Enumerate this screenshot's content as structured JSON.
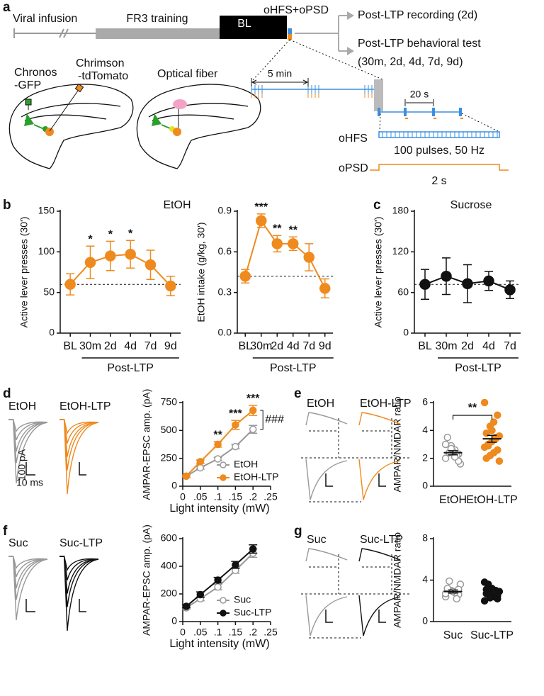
{
  "panels": [
    "a",
    "b",
    "c",
    "d",
    "e",
    "f",
    "g"
  ],
  "diagram": {
    "timeline": [
      "Viral infusion",
      "FR3 training",
      "BL",
      "oHFS+oPSD"
    ],
    "outcomes": [
      "Post-LTP recording (2d)",
      "Post-LTP behavioral test",
      "(30m, 2d, 4d, 7d, 9d)"
    ],
    "labels": [
      "Chronos",
      "-GFP",
      "Chrimson",
      "-tdTomato",
      "Optical fiber"
    ],
    "protocol": [
      "5 min",
      "20 s",
      "oHFS",
      "100 pulses, 50 Hz",
      "oPSD",
      "2 s"
    ]
  },
  "chart_data": [
    {
      "type": "line",
      "title": "EtOH",
      "categories": [
        "BL",
        "30m",
        "2d",
        "4d",
        "7d",
        "9d"
      ],
      "group_label": "Post-LTP",
      "ylabel": "Active lever presses (30')",
      "ylim": [
        0,
        150
      ],
      "yticks": [
        0,
        50,
        100,
        150
      ],
      "baseline": 60,
      "series": [
        {
          "color": "#ee8a1e",
          "filled": true,
          "values": [
            60,
            87,
            95,
            97,
            84,
            58
          ],
          "errors": [
            13,
            20,
            18,
            17,
            18,
            12
          ]
        }
      ],
      "stars": [
        null,
        "*",
        "*",
        "*",
        null,
        null
      ]
    },
    {
      "type": "line",
      "categories": [
        "BL",
        "30m",
        "2d",
        "4d",
        "7d",
        "9d"
      ],
      "group_label": "Post-LTP",
      "ylabel": "EtOH intake (g/kg, 30')",
      "ylim": [
        0,
        0.9
      ],
      "yticks": [
        {
          "value": 0,
          "label": "0.0"
        },
        0.3,
        0.6,
        0.9
      ],
      "baseline": 0.42,
      "series": [
        {
          "color": "#ee8a1e",
          "filled": true,
          "values": [
            0.42,
            0.83,
            0.66,
            0.66,
            0.56,
            0.33
          ],
          "errors": [
            0.05,
            0.05,
            0.06,
            0.05,
            0.1,
            0.07
          ]
        }
      ],
      "stars": [
        null,
        "***",
        "**",
        "**",
        null,
        null
      ]
    },
    {
      "type": "line",
      "title": "Sucrose",
      "categories": [
        "BL",
        "30m",
        "2d",
        "4d",
        "7d"
      ],
      "group_label": "Post-LTP",
      "ylabel": "Active lever presses (30')",
      "ylim": [
        0,
        180
      ],
      "yticks": [
        0,
        60,
        120,
        180
      ],
      "baseline": 72,
      "series": [
        {
          "color": "#111111",
          "filled": true,
          "values": [
            72,
            84,
            73,
            77,
            64
          ],
          "errors": [
            22,
            27,
            28,
            14,
            13
          ]
        }
      ]
    },
    {
      "type": "line",
      "x": [
        0.01,
        0.05,
        0.1,
        0.15,
        0.2
      ],
      "xlim": [
        0,
        0.25
      ],
      "xticks": [
        0,
        {
          "value": 0.05,
          "label": ".05"
        },
        {
          "value": 0.1,
          "label": ".1"
        },
        {
          "value": 0.15,
          "label": ".15"
        },
        {
          "value": 0.2,
          "label": ".2"
        },
        {
          "value": 0.25,
          "label": ".25"
        }
      ],
      "xlabel": "Light intensity (mW)",
      "ylabel": "AMPAR-EPSC amp. (pA)",
      "ylim": [
        0,
        750
      ],
      "yticks": [
        0,
        250,
        500,
        750
      ],
      "legend": "lower right",
      "series": [
        {
          "name": "EtOH",
          "color": "#999999",
          "filled": false,
          "values": [
            90,
            165,
            245,
            355,
            510
          ],
          "errors": [
            10,
            12,
            15,
            20,
            35
          ]
        },
        {
          "name": "EtOH-LTP",
          "color": "#ee8a1e",
          "filled": true,
          "values": [
            90,
            220,
            375,
            550,
            680
          ],
          "errors": [
            10,
            15,
            25,
            40,
            45
          ]
        }
      ],
      "stars": [
        null,
        null,
        "**",
        "***",
        "***"
      ],
      "comparison": "###",
      "trace_labels": [
        "EtOH",
        "EtOH-LTP"
      ],
      "scale_labels": [
        "100 pA",
        "10 ms"
      ]
    },
    {
      "type": "dot",
      "ylabel": "AMPAR/NMDAR ratio",
      "ylim": [
        0,
        6
      ],
      "yticks": [
        0,
        2,
        4,
        6
      ],
      "significance": "**",
      "groups": [
        {
          "name": "EtOH",
          "color": "#999999",
          "filled": false,
          "points": [
            2.0,
            2.3,
            2.6,
            2.9,
            3.5,
            1.6,
            2.2,
            2.5,
            2.4,
            3.0,
            1.8,
            2.1,
            2.7
          ],
          "mean": 2.4,
          "sem": 0.15
        },
        {
          "name": "EtOH-LTP",
          "color": "#ee8a1e",
          "filled": true,
          "points": [
            6.0,
            5.1,
            4.6,
            4.3,
            3.8,
            3.6,
            3.4,
            3.2,
            3.0,
            2.8,
            2.6,
            2.4,
            2.2,
            2.0,
            1.8,
            3.5,
            4.0,
            2.9
          ],
          "mean": 3.4,
          "sem": 0.25
        }
      ],
      "trace_labels": [
        "EtOH",
        "EtOH-LTP"
      ]
    },
    {
      "type": "line",
      "x": [
        0.01,
        0.05,
        0.1,
        0.15,
        0.2
      ],
      "xlim": [
        0,
        0.25
      ],
      "xticks": [
        0,
        {
          "value": 0.05,
          "label": ".05"
        },
        {
          "value": 0.1,
          "label": ".1"
        },
        {
          "value": 0.15,
          "label": ".15"
        },
        {
          "value": 0.2,
          "label": ".2"
        },
        {
          "value": 0.25,
          "label": ".25"
        }
      ],
      "xlabel": "Light intensity (mW)",
      "ylabel": "AMPAR-EPSC amp. (pA)",
      "ylim": [
        0,
        600
      ],
      "yticks": [
        0,
        200,
        400,
        600
      ],
      "legend": "lower right",
      "series": [
        {
          "name": "Suc",
          "color": "#999999",
          "filled": false,
          "values": [
            100,
            165,
            250,
            370,
            495
          ],
          "errors": [
            10,
            15,
            20,
            20,
            30
          ]
        },
        {
          "name": "Suc-LTP",
          "color": "#111111",
          "filled": true,
          "values": [
            110,
            195,
            300,
            410,
            525
          ],
          "errors": [
            10,
            20,
            20,
            25,
            30
          ]
        }
      ],
      "trace_labels": [
        "Suc",
        "Suc-LTP"
      ]
    },
    {
      "type": "dot",
      "ylabel": "AMPAR/NMDAR ratio",
      "ylim": [
        0,
        8
      ],
      "yticks": [
        0,
        4,
        8
      ],
      "groups": [
        {
          "name": "Suc",
          "color": "#999999",
          "filled": false,
          "points": [
            2.4,
            2.6,
            2.8,
            3.0,
            3.2,
            3.6,
            2.2,
            2.9,
            3.9,
            2.7,
            3.1
          ],
          "mean": 2.9,
          "sem": 0.15
        },
        {
          "name": "Suc-LTP",
          "color": "#111111",
          "filled": true,
          "points": [
            2.0,
            2.2,
            2.4,
            2.6,
            2.7,
            2.9,
            3.0,
            3.2,
            3.6,
            3.8,
            2.5,
            2.8,
            2.3,
            3.1
          ],
          "mean": 2.7,
          "sem": 0.12
        }
      ],
      "trace_labels": [
        "Suc",
        "Suc-LTP"
      ]
    }
  ]
}
